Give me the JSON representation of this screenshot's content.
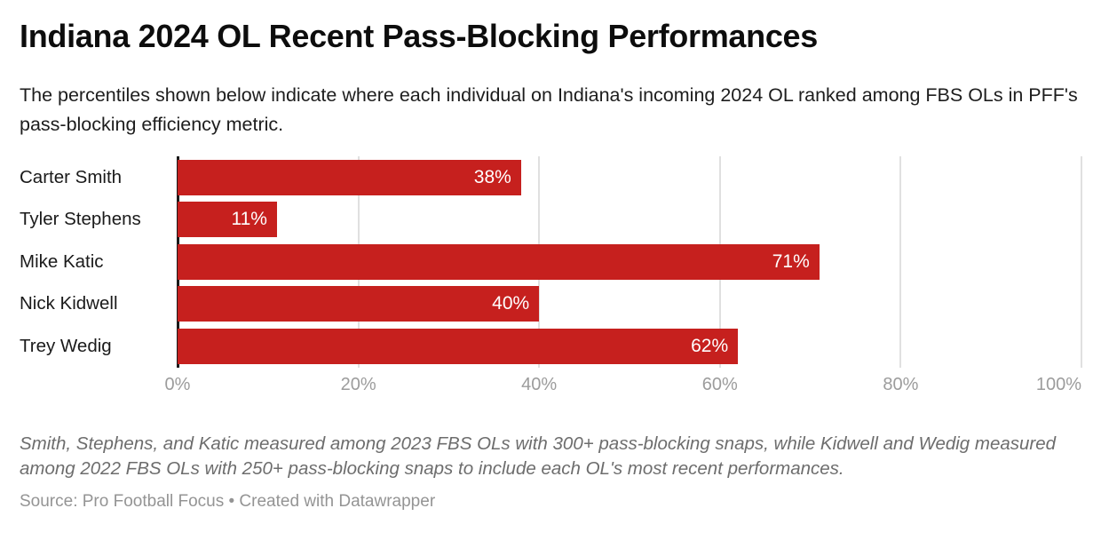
{
  "header": {
    "title": "Indiana 2024 OL Recent Pass-Blocking Performances",
    "subtitle": "The percentiles shown below indicate where each individual on Indiana's incoming 2024 OL ranked among FBS OLs in PFF's pass-blocking efficiency metric."
  },
  "chart_data": {
    "type": "bar",
    "orientation": "horizontal",
    "title": "Indiana 2024 OL Recent Pass-Blocking Performances",
    "categories": [
      "Carter Smith",
      "Tyler Stephens",
      "Mike Katic",
      "Nick Kidwell",
      "Trey Wedig"
    ],
    "values": [
      38,
      11,
      71,
      40,
      62
    ],
    "value_labels": [
      "38%",
      "11%",
      "71%",
      "40%",
      "62%"
    ],
    "xlim": [
      0,
      100
    ],
    "x_ticks": [
      {
        "value": 0,
        "label": "0%"
      },
      {
        "value": 20,
        "label": "20%"
      },
      {
        "value": 40,
        "label": "40%"
      },
      {
        "value": 60,
        "label": "60%"
      },
      {
        "value": 80,
        "label": "80%"
      },
      {
        "value": 100,
        "label": "100%"
      }
    ],
    "grid": true,
    "legend_position": "none",
    "colors": {
      "bar": "#c6201e",
      "axis_line": "#1a1a1a",
      "gridline": "#e0e0e0",
      "tick_label": "#9c9c9c",
      "value_label": "#ffffff"
    }
  },
  "footer": {
    "note": "Smith, Stephens, and Katic measured among 2023 FBS OLs with 300+ pass-blocking snaps, while Kidwell and Wedig measured among 2022 FBS OLs with 250+ pass-blocking snaps to include each OL's most recent performances.",
    "source": "Source: Pro Football Focus • Created with Datawrapper"
  }
}
